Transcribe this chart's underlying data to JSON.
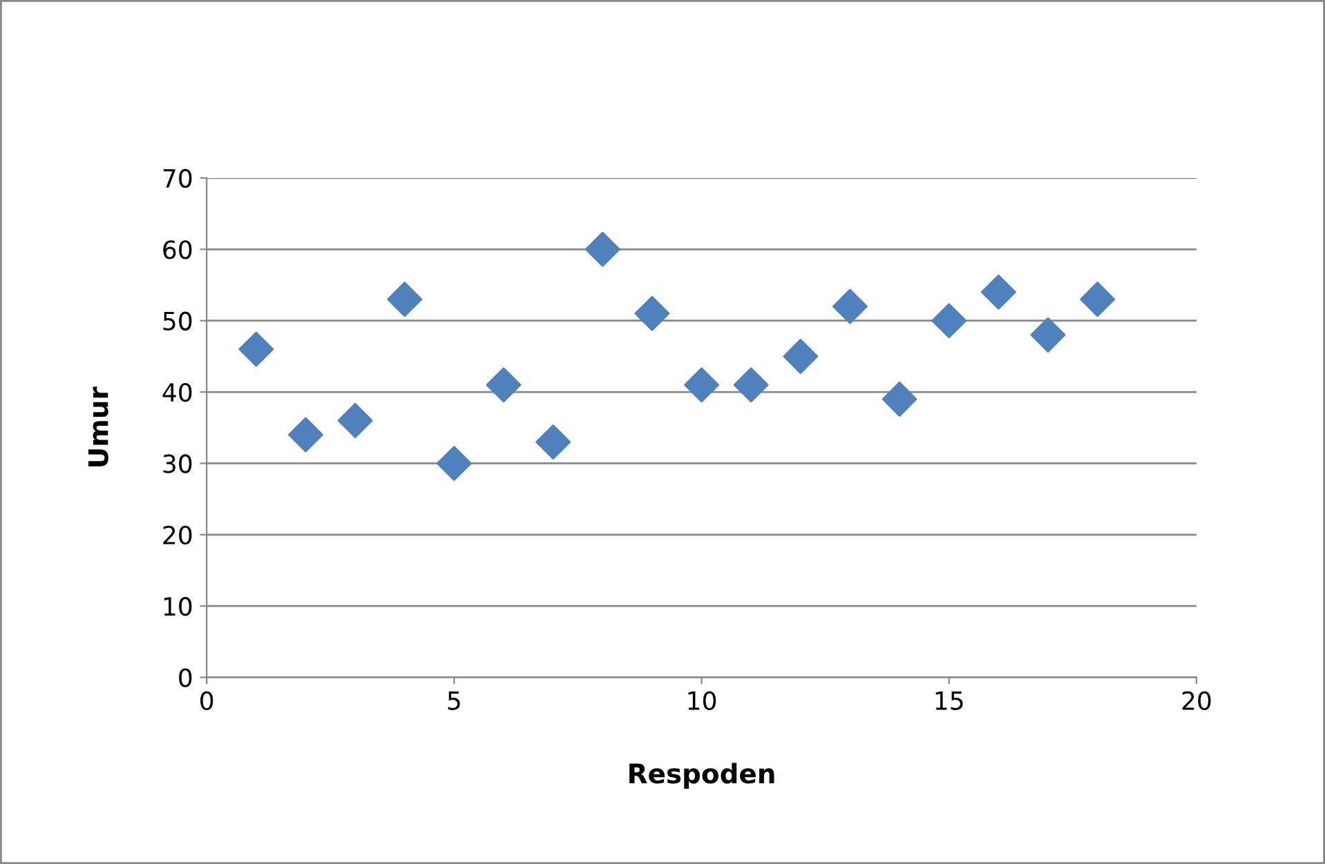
{
  "chart_data": {
    "type": "scatter",
    "xlabel": "Respoden",
    "ylabel": "Umur",
    "x": [
      1,
      2,
      3,
      4,
      5,
      6,
      7,
      8,
      9,
      10,
      11,
      12,
      13,
      14,
      15,
      16,
      17,
      18
    ],
    "series": [
      {
        "color": "#4f81bd",
        "values": [
          46,
          34,
          36,
          53,
          30,
          41,
          33,
          60,
          51,
          41,
          41,
          45,
          52,
          39,
          50,
          54,
          48,
          53
        ]
      }
    ],
    "xlim": [
      0,
      20
    ],
    "xticks": [
      0,
      5,
      10,
      15,
      20
    ],
    "ylim": [
      0,
      70
    ],
    "yticks": [
      0,
      10,
      20,
      30,
      40,
      50,
      60,
      70
    ],
    "grid": "y",
    "marker": "diamond",
    "legend": false
  }
}
